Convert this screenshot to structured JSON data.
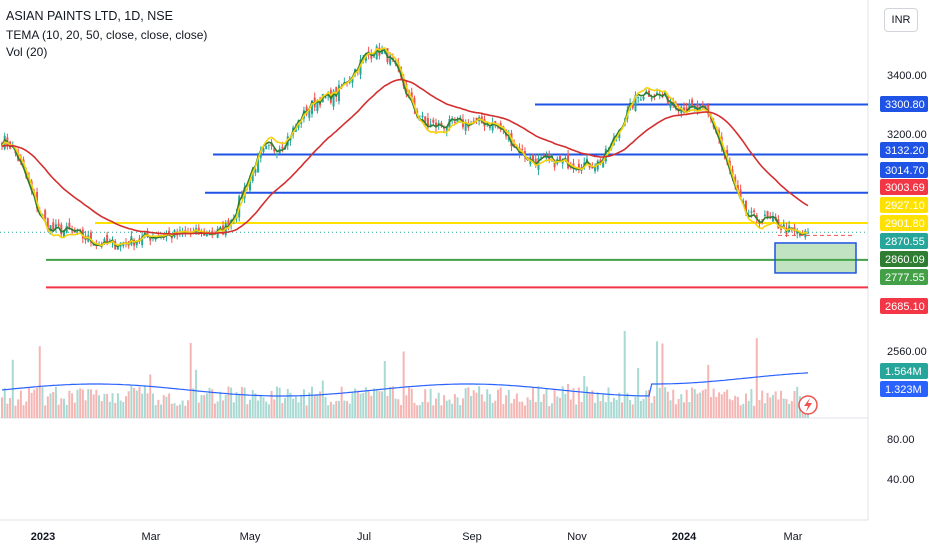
{
  "header": {
    "title": "ASIAN PAINTS LTD, 1D, NSE",
    "study": "TEMA (10, 20, 50, close, close, close)",
    "volume": "Vol (20)"
  },
  "currency_button": "INR",
  "colors": {
    "up_candle": "#26a69a",
    "down_candle": "#ef5350",
    "tema10": "#2e7d32",
    "tema20": "#f5d20d",
    "tema50": "#d32f2f",
    "resistance": "#1e53e5",
    "yellow_level": "#ffe100",
    "green_level": "#43a047",
    "red_level": "#f23645",
    "vol_ma": "#2962ff"
  },
  "chart_data": {
    "type": "candlestick",
    "symbol": "ASIAN PAINTS LTD",
    "interval": "1D",
    "exchange": "NSE",
    "x_labels": [
      "2023",
      "Mar",
      "May",
      "Jul",
      "Sep",
      "Nov",
      "2024",
      "Mar"
    ],
    "price_axis_ticks": [
      3400,
      3200,
      2560,
      80,
      40
    ],
    "price_axis_labels": [
      "3400.00",
      "3200.00",
      "2560.00",
      "80.00",
      "40.00"
    ],
    "price_path_monthly": [
      {
        "period": "Dec 2022",
        "value": 3180
      },
      {
        "period": "Jan 2023",
        "value": 2880
      },
      {
        "period": "Feb 2023",
        "value": 2830
      },
      {
        "period": "Mar 2023",
        "value": 2860
      },
      {
        "period": "Apr 2023",
        "value": 2870
      },
      {
        "period": "May 2023",
        "value": 3150
      },
      {
        "period": "Jun 2023",
        "value": 3320
      },
      {
        "period": "Jul 2023",
        "value": 3480
      },
      {
        "period": "Aug 2023",
        "value": 3230
      },
      {
        "period": "Sep 2023",
        "value": 3240
      },
      {
        "period": "Oct 2023",
        "value": 3110
      },
      {
        "period": "Nov 2023",
        "value": 3100
      },
      {
        "period": "Dec 2023",
        "value": 3340
      },
      {
        "period": "Jan 2024",
        "value": 3280
      },
      {
        "period": "Feb 2024",
        "value": 2920
      },
      {
        "period": "Mar 2024",
        "value": 2860
      }
    ],
    "horizontal_levels": [
      {
        "value": 3300.8,
        "label": "3300.80",
        "color": "blue"
      },
      {
        "value": 3132.2,
        "label": "3132.20",
        "color": "blue"
      },
      {
        "value": 3003.69,
        "label": "3003.69",
        "color": "blue"
      },
      {
        "value": 2901.8,
        "label": "2901.80",
        "color": "yellow"
      },
      {
        "value": 2777.55,
        "label": "2777.55",
        "color": "green"
      },
      {
        "value": 2685.1,
        "label": "2685.10",
        "color": "red"
      }
    ],
    "indicator_values": [
      {
        "label": "3014.70",
        "meaning": "TEMA 50"
      },
      {
        "label": "2927.10",
        "meaning": "TEMA 20"
      },
      {
        "label": "2870.55",
        "meaning": "last price"
      },
      {
        "label": "2860.09",
        "meaning": "TEMA 10"
      }
    ],
    "volume_labels": [
      {
        "label": "1.564M",
        "meaning": "volume"
      },
      {
        "label": "1.323M",
        "meaning": "volume MA 20"
      }
    ],
    "studies": [
      "TEMA 10",
      "TEMA 20",
      "TEMA 50",
      "Vol 20"
    ],
    "grid": false
  }
}
